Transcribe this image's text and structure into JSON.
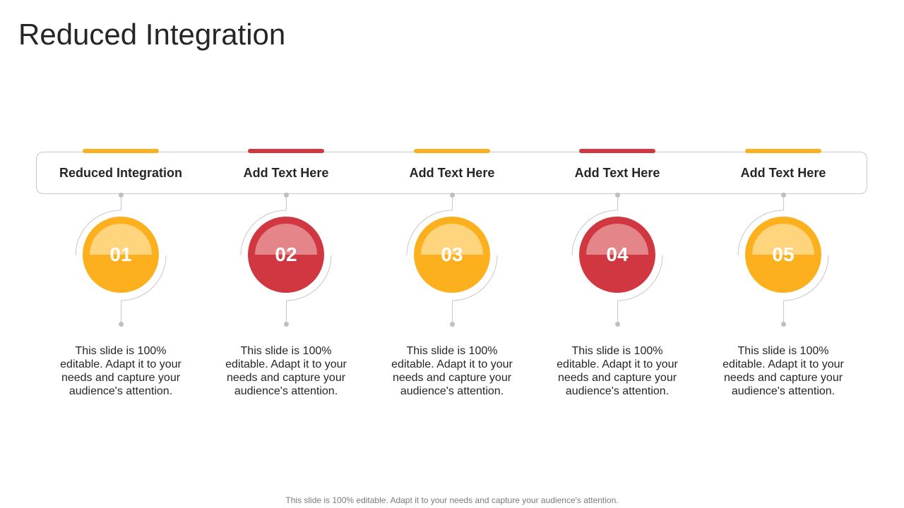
{
  "title": "Reduced Integration",
  "colors": {
    "yellow": "#FDB01E",
    "yellow_light": "#FED57C",
    "red": "#D03741",
    "red_light": "#E48589"
  },
  "steps": [
    {
      "number": "01",
      "heading": "Reduced Integration",
      "text": "This slide is 100% editable. Adapt it to your needs and capture your audience's attention.",
      "color": "yellow"
    },
    {
      "number": "02",
      "heading": "Add Text Here",
      "text": "This slide is 100% editable. Adapt it to your needs and capture your audience's attention.",
      "color": "red"
    },
    {
      "number": "03",
      "heading": "Add Text Here",
      "text": "This slide is 100% editable. Adapt it to your needs and capture your audience's attention.",
      "color": "yellow"
    },
    {
      "number": "04",
      "heading": "Add Text Here",
      "text": "This slide is 100% editable. Adapt it to your needs and capture your audience's attention.",
      "color": "red"
    },
    {
      "number": "05",
      "heading": "Add Text Here",
      "text": "This slide is 100% editable. Adapt it to your needs and capture your audience's attention.",
      "color": "yellow"
    }
  ],
  "footer": "This slide is 100% editable. Adapt it to your needs and capture your audience's attention."
}
